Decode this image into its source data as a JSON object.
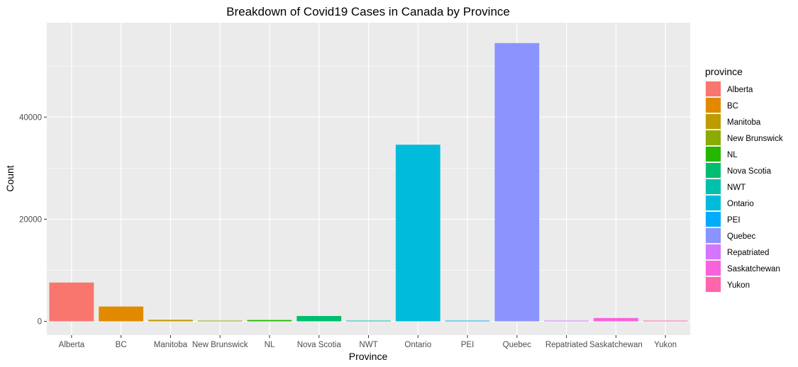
{
  "chart_data": {
    "type": "bar",
    "title": "Breakdown of Covid19 Cases in Canada by Province",
    "xlabel": "Province",
    "ylabel": "Count",
    "ylim": [
      -2700,
      58500
    ],
    "yticks": [
      0,
      20000,
      40000
    ],
    "ytick_labels": [
      "0",
      "20000",
      "40000"
    ],
    "grid": true,
    "legend_position": "right",
    "legend_title": "province",
    "categories": [
      "Alberta",
      "BC",
      "Manitoba",
      "New Brunswick",
      "NL",
      "Nova Scotia",
      "NWT",
      "Ontario",
      "PEI",
      "Quebec",
      "Repatriated",
      "Saskatchewan",
      "Yukon"
    ],
    "values": [
      7600,
      2900,
      300,
      120,
      260,
      1050,
      5,
      34600,
      27,
      54500,
      13,
      650,
      11
    ],
    "colors": [
      "#F8766D",
      "#E18A00",
      "#BE9C00",
      "#8CAB00",
      "#24B700",
      "#00BE70",
      "#00C1AB",
      "#00BBDA",
      "#00ACFC",
      "#8B93FF",
      "#D575FE",
      "#F962DD",
      "#FF65AC"
    ]
  }
}
